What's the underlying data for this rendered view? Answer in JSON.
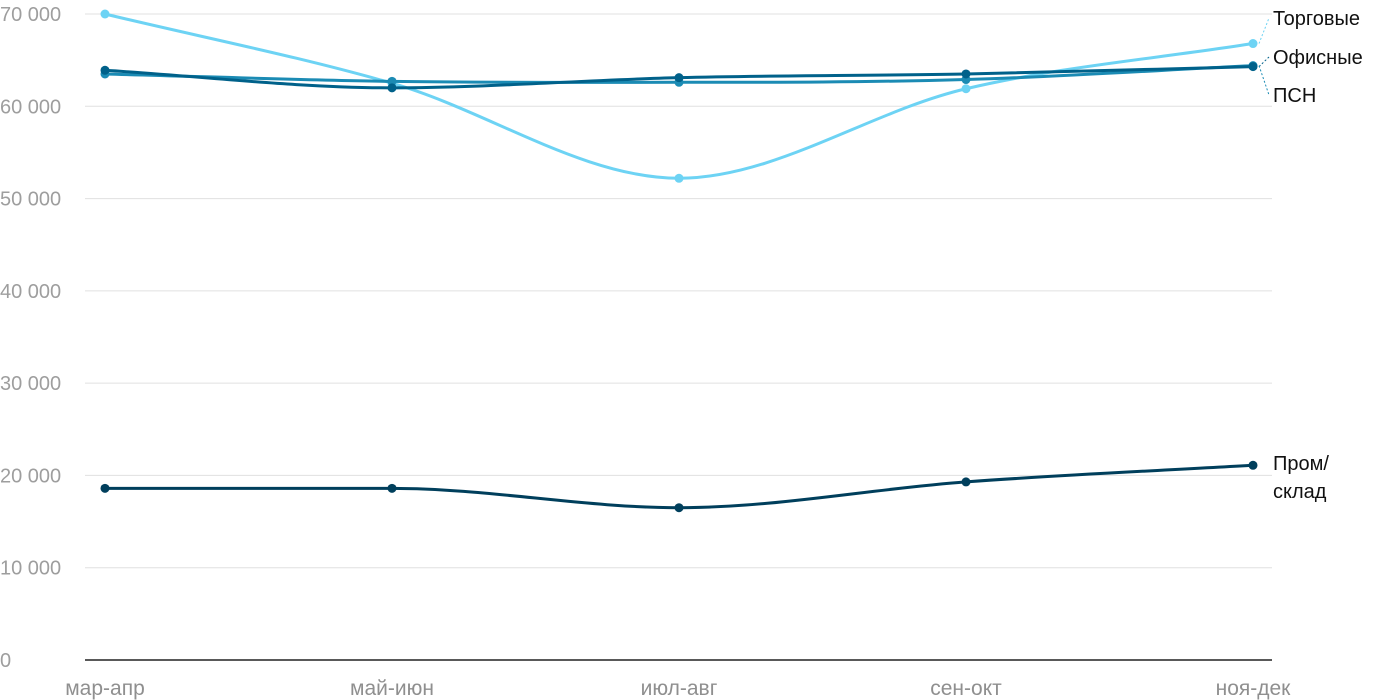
{
  "chart_data": {
    "type": "line",
    "title": "",
    "xlabel": "",
    "ylabel": "",
    "categories": [
      "мар-апр",
      "май-июн",
      "июл-авг",
      "сен-окт",
      "ноя-дек"
    ],
    "ylim": [
      0,
      70000
    ],
    "y_ticks": [
      0,
      10000,
      20000,
      30000,
      40000,
      50000,
      60000,
      70000
    ],
    "y_tick_labels": [
      "0",
      "10 000",
      "20 000",
      "30 000",
      "40 000",
      "50 000",
      "60 000",
      "70 000"
    ],
    "grid": true,
    "legend": "right-end labels",
    "series": [
      {
        "name": "Торговые",
        "values": [
          70000,
          62500,
          52200,
          61900,
          66800
        ],
        "color": "#6dd3f4"
      },
      {
        "name": "Офисные",
        "values": [
          63900,
          62000,
          63100,
          63500,
          64300
        ],
        "color": "#00618a"
      },
      {
        "name": "ПСН",
        "values": [
          63500,
          62700,
          62600,
          62900,
          64400
        ],
        "color": "#1b8bb4"
      },
      {
        "name": "Пром/склад",
        "name_lines": [
          "Пром/",
          "склад"
        ],
        "values": [
          18600,
          18600,
          16500,
          19300,
          21100
        ],
        "color": "#003f5c"
      }
    ]
  }
}
